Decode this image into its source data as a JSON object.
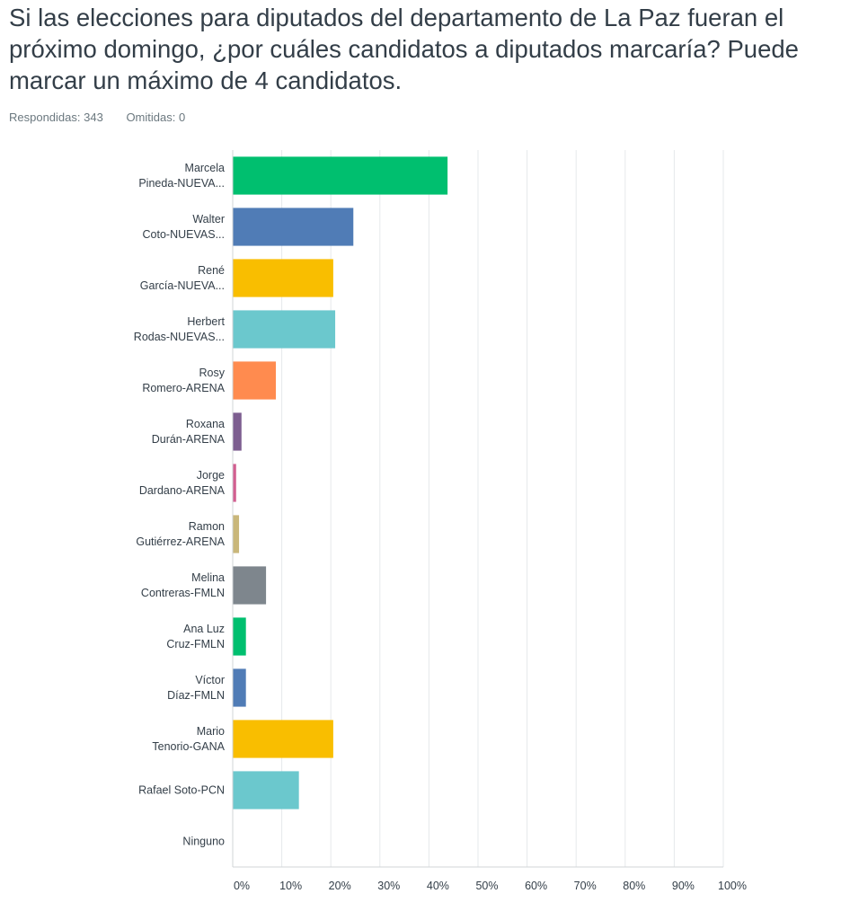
{
  "question": {
    "title": "Si las elecciones para diputados del departamento de La Paz fueran el próximo domingo, ¿por cuáles candidatos a diputados marcaría? Puede marcar un máximo de 4 candidatos."
  },
  "stats": {
    "answered": "Respondidas: 343",
    "skipped": "Omitidas: 0"
  },
  "chart_data": {
    "type": "bar",
    "orientation": "horizontal",
    "categories": [
      [
        "Marcela",
        "Pineda-NUEVA..."
      ],
      [
        "Walter",
        "Coto-NUEVAS..."
      ],
      [
        "René",
        "García-NUEVA..."
      ],
      [
        "Herbert",
        "Rodas-NUEVAS..."
      ],
      [
        "Rosy",
        "Romero-ARENA"
      ],
      [
        "Roxana",
        "Durán-ARENA"
      ],
      [
        "Jorge",
        "Dardano-ARENA"
      ],
      [
        "Ramon",
        "Gutiérrez-ARENA"
      ],
      [
        "Melina",
        "Contreras-FMLN"
      ],
      [
        "Ana Luz",
        "Cruz-FMLN"
      ],
      [
        "Víctor",
        "Díaz-FMLN"
      ],
      [
        "Mario",
        "Tenorio-GANA"
      ],
      [
        "Rafael Soto-PCN"
      ],
      [
        "Ninguno"
      ]
    ],
    "values": [
      43.7,
      24.5,
      20.4,
      20.8,
      8.7,
      1.7,
      0.6,
      1.2,
      6.7,
      2.6,
      2.6,
      20.4,
      13.4,
      0
    ],
    "colors": [
      "#00bf6f",
      "#507cb6",
      "#f9be00",
      "#6bc8cd",
      "#ff8b4f",
      "#7d5e90",
      "#d25f90",
      "#c9b77a",
      "#7e868d",
      "#00bf6f",
      "#507cb6",
      "#f9be00",
      "#6bc8cd",
      "#ff8b4f"
    ],
    "xlim": [
      0,
      100
    ],
    "xticks": [
      "0%",
      "10%",
      "20%",
      "30%",
      "40%",
      "50%",
      "60%",
      "70%",
      "80%",
      "90%",
      "100%"
    ],
    "grid": true
  }
}
